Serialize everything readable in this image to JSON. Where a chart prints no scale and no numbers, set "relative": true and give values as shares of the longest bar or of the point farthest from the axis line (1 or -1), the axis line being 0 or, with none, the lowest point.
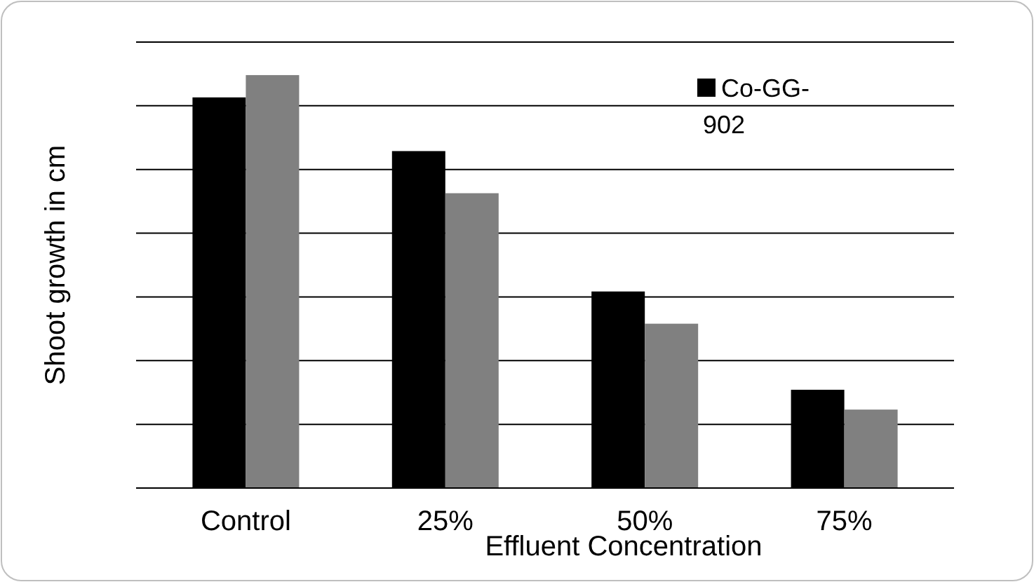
{
  "chart_data": {
    "type": "bar",
    "relative": true,
    "xlabel": "Effluent Concentration",
    "ylabel": "Shoot growth in cm",
    "categories": [
      "Control",
      "25%",
      "50%",
      "75%"
    ],
    "series": [
      {
        "name": "Co-GG-902",
        "color": "#000000",
        "values": [
          0.946,
          0.816,
          0.476,
          0.238
        ]
      },
      {
        "color": "#808080",
        "values": [
          1,
          0.714,
          0.398,
          0.19
        ]
      }
    ],
    "grid": "y",
    "legend": "top right"
  }
}
